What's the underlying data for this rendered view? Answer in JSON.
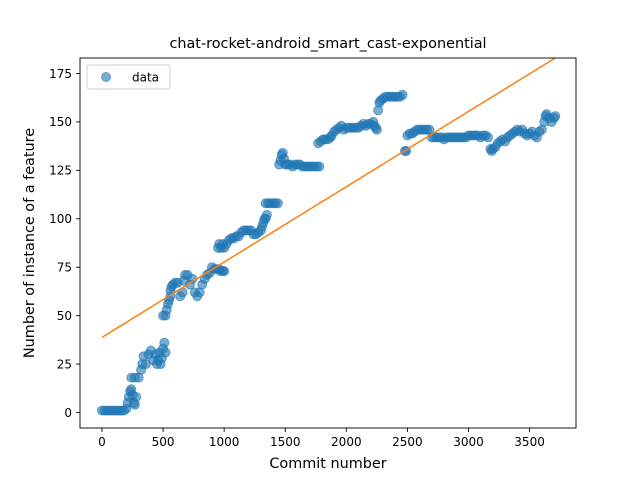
{
  "chart_data": {
    "type": "scatter",
    "title": "chat-rocket-android_smart_cast-exponential",
    "xlabel": "Commit number",
    "ylabel": "Number of instance of a feature",
    "xlim": [
      -180,
      3880
    ],
    "ylim": [
      -8,
      183
    ],
    "xticks": [
      0,
      500,
      1000,
      1500,
      2000,
      2500,
      3000,
      3500
    ],
    "yticks": [
      0,
      25,
      50,
      75,
      100,
      125,
      150,
      175
    ],
    "legend": {
      "position": "top-left",
      "entries": [
        "data"
      ]
    },
    "grid": false,
    "series": [
      {
        "name": "data",
        "kind": "scatter",
        "color": "#1f77b4",
        "points": [
          [
            0,
            1
          ],
          [
            20,
            1
          ],
          [
            40,
            1
          ],
          [
            60,
            1
          ],
          [
            80,
            1
          ],
          [
            100,
            1
          ],
          [
            120,
            1
          ],
          [
            140,
            1
          ],
          [
            160,
            1
          ],
          [
            180,
            1
          ],
          [
            200,
            2
          ],
          [
            210,
            5
          ],
          [
            220,
            8
          ],
          [
            230,
            11
          ],
          [
            240,
            12
          ],
          [
            250,
            9
          ],
          [
            260,
            5
          ],
          [
            270,
            4
          ],
          [
            280,
            8
          ],
          [
            240,
            18
          ],
          [
            270,
            18
          ],
          [
            300,
            18
          ],
          [
            320,
            22
          ],
          [
            330,
            25
          ],
          [
            340,
            29
          ],
          [
            360,
            25
          ],
          [
            380,
            30
          ],
          [
            400,
            32
          ],
          [
            420,
            27
          ],
          [
            440,
            30
          ],
          [
            450,
            25
          ],
          [
            460,
            27
          ],
          [
            470,
            31
          ],
          [
            480,
            25
          ],
          [
            490,
            28
          ],
          [
            500,
            33
          ],
          [
            510,
            36
          ],
          [
            520,
            31
          ],
          [
            500,
            50
          ],
          [
            520,
            50
          ],
          [
            530,
            53
          ],
          [
            540,
            56
          ],
          [
            550,
            58
          ],
          [
            560,
            60
          ],
          [
            560,
            63
          ],
          [
            570,
            65
          ],
          [
            580,
            66
          ],
          [
            600,
            67
          ],
          [
            620,
            67
          ],
          [
            640,
            60
          ],
          [
            660,
            62
          ],
          [
            670,
            68
          ],
          [
            680,
            71
          ],
          [
            700,
            71
          ],
          [
            720,
            66
          ],
          [
            740,
            69
          ],
          [
            760,
            62
          ],
          [
            780,
            60
          ],
          [
            800,
            62
          ],
          [
            820,
            66
          ],
          [
            840,
            69
          ],
          [
            860,
            71
          ],
          [
            880,
            72
          ],
          [
            900,
            75
          ],
          [
            920,
            74
          ],
          [
            940,
            74
          ],
          [
            960,
            74
          ],
          [
            970,
            73
          ],
          [
            990,
            73
          ],
          [
            1000,
            73
          ],
          [
            950,
            85
          ],
          [
            960,
            87
          ],
          [
            975,
            85
          ],
          [
            990,
            87
          ],
          [
            1000,
            85
          ],
          [
            1020,
            87
          ],
          [
            1040,
            89
          ],
          [
            1060,
            90
          ],
          [
            1080,
            90
          ],
          [
            1100,
            91
          ],
          [
            1120,
            91
          ],
          [
            1140,
            93
          ],
          [
            1160,
            94
          ],
          [
            1180,
            94
          ],
          [
            1200,
            94
          ],
          [
            1220,
            94
          ],
          [
            1240,
            92
          ],
          [
            1260,
            92
          ],
          [
            1280,
            93
          ],
          [
            1300,
            94
          ],
          [
            1310,
            96
          ],
          [
            1320,
            98
          ],
          [
            1330,
            100
          ],
          [
            1340,
            100
          ],
          [
            1350,
            102
          ],
          [
            1340,
            108
          ],
          [
            1360,
            108
          ],
          [
            1380,
            108
          ],
          [
            1400,
            108
          ],
          [
            1420,
            108
          ],
          [
            1440,
            108
          ],
          [
            1450,
            128
          ],
          [
            1460,
            130
          ],
          [
            1470,
            133
          ],
          [
            1480,
            134
          ],
          [
            1490,
            131
          ],
          [
            1500,
            128
          ],
          [
            1520,
            128
          ],
          [
            1540,
            128
          ],
          [
            1560,
            127
          ],
          [
            1580,
            128
          ],
          [
            1600,
            128
          ],
          [
            1620,
            128
          ],
          [
            1640,
            127
          ],
          [
            1660,
            127
          ],
          [
            1680,
            127
          ],
          [
            1700,
            127
          ],
          [
            1720,
            127
          ],
          [
            1740,
            127
          ],
          [
            1760,
            127
          ],
          [
            1780,
            127
          ],
          [
            1770,
            139
          ],
          [
            1790,
            140
          ],
          [
            1810,
            141
          ],
          [
            1830,
            141
          ],
          [
            1850,
            141
          ],
          [
            1870,
            142
          ],
          [
            1880,
            143
          ],
          [
            1900,
            145
          ],
          [
            1920,
            146
          ],
          [
            1940,
            147
          ],
          [
            1960,
            148
          ],
          [
            1980,
            146
          ],
          [
            2000,
            147
          ],
          [
            2020,
            147
          ],
          [
            2040,
            147
          ],
          [
            2060,
            147
          ],
          [
            2080,
            147
          ],
          [
            2100,
            147
          ],
          [
            2120,
            148
          ],
          [
            2140,
            149
          ],
          [
            2160,
            148
          ],
          [
            2180,
            149
          ],
          [
            2200,
            149
          ],
          [
            2220,
            150
          ],
          [
            2230,
            148
          ],
          [
            2240,
            147
          ],
          [
            2250,
            146
          ],
          [
            2260,
            156
          ],
          [
            2270,
            160
          ],
          [
            2280,
            161
          ],
          [
            2300,
            162
          ],
          [
            2320,
            163
          ],
          [
            2340,
            163
          ],
          [
            2360,
            163
          ],
          [
            2380,
            163
          ],
          [
            2400,
            163
          ],
          [
            2420,
            163
          ],
          [
            2440,
            163
          ],
          [
            2460,
            164
          ],
          [
            2480,
            135
          ],
          [
            2490,
            135
          ],
          [
            2500,
            143
          ],
          [
            2520,
            144
          ],
          [
            2540,
            144
          ],
          [
            2560,
            145
          ],
          [
            2580,
            146
          ],
          [
            2600,
            146
          ],
          [
            2620,
            146
          ],
          [
            2640,
            146
          ],
          [
            2660,
            146
          ],
          [
            2680,
            146
          ],
          [
            2700,
            142
          ],
          [
            2720,
            142
          ],
          [
            2740,
            142
          ],
          [
            2760,
            142
          ],
          [
            2780,
            142
          ],
          [
            2800,
            141
          ],
          [
            2820,
            142
          ],
          [
            2840,
            142
          ],
          [
            2860,
            142
          ],
          [
            2880,
            142
          ],
          [
            2900,
            142
          ],
          [
            2920,
            142
          ],
          [
            2940,
            142
          ],
          [
            2960,
            142
          ],
          [
            2980,
            142
          ],
          [
            3000,
            143
          ],
          [
            3020,
            143
          ],
          [
            3040,
            143
          ],
          [
            3060,
            143
          ],
          [
            3080,
            143
          ],
          [
            3100,
            142
          ],
          [
            3120,
            143
          ],
          [
            3140,
            143
          ],
          [
            3160,
            142
          ],
          [
            3180,
            136
          ],
          [
            3190,
            135
          ],
          [
            3200,
            136
          ],
          [
            3220,
            137
          ],
          [
            3240,
            139
          ],
          [
            3260,
            140
          ],
          [
            3280,
            141
          ],
          [
            3300,
            140
          ],
          [
            3320,
            142
          ],
          [
            3340,
            143
          ],
          [
            3360,
            144
          ],
          [
            3380,
            145
          ],
          [
            3400,
            146
          ],
          [
            3420,
            145
          ],
          [
            3440,
            146
          ],
          [
            3460,
            144
          ],
          [
            3480,
            143
          ],
          [
            3500,
            144
          ],
          [
            3520,
            145
          ],
          [
            3540,
            143
          ],
          [
            3560,
            142
          ],
          [
            3580,
            145
          ],
          [
            3600,
            146
          ],
          [
            3620,
            150
          ],
          [
            3630,
            153
          ],
          [
            3640,
            154
          ],
          [
            3660,
            152
          ],
          [
            3680,
            150
          ],
          [
            3700,
            152
          ],
          [
            3710,
            153
          ]
        ]
      },
      {
        "name": "",
        "kind": "line",
        "color": "#ff7f0e",
        "points": [
          [
            0,
            38.8
          ],
          [
            3710,
            183
          ]
        ]
      }
    ]
  }
}
